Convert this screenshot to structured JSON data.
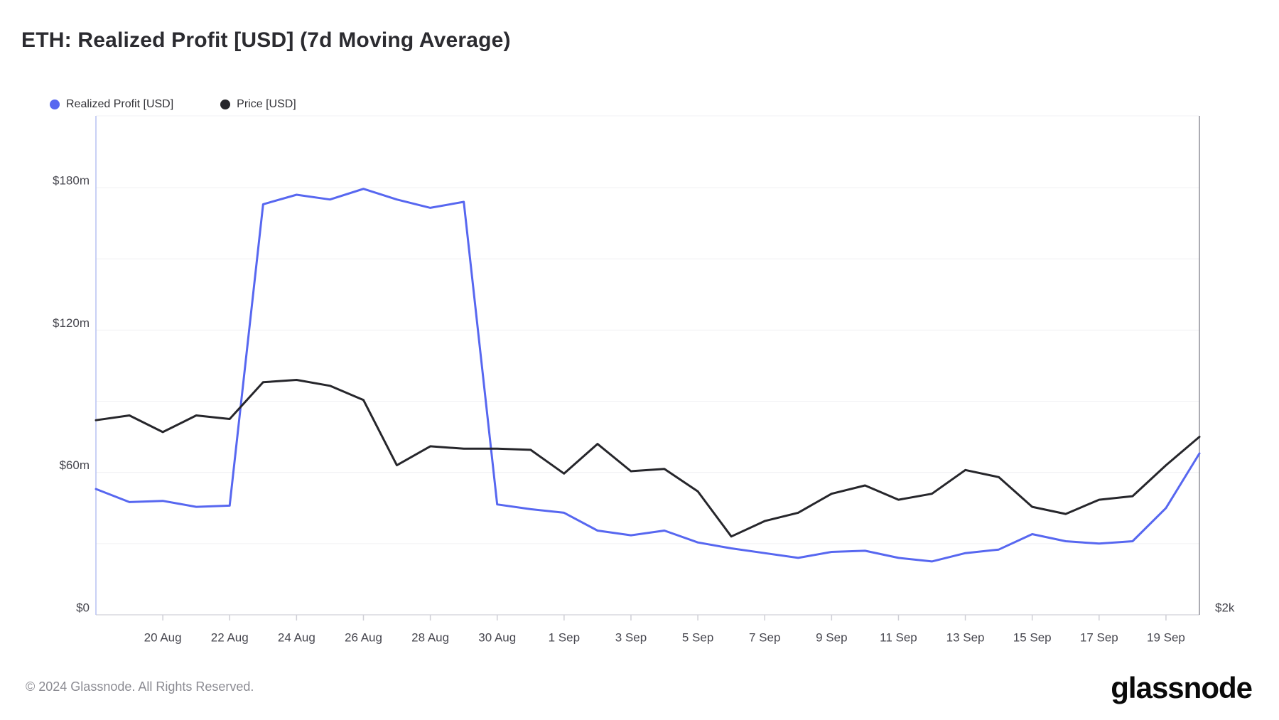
{
  "header": {
    "title": "ETH: Realized Profit [USD] (7d Moving Average)"
  },
  "legend": {
    "items": [
      {
        "label": "Realized Profit [USD]",
        "color": "#5767f0"
      },
      {
        "label": "Price [USD]",
        "color": "#26262b"
      }
    ]
  },
  "chart_data": {
    "type": "line",
    "title": "ETH: Realized Profit [USD] (7d Moving Average)",
    "grid": "horizontal",
    "legend_position": "top-left",
    "x": [
      "18 Aug",
      "19 Aug",
      "20 Aug",
      "21 Aug",
      "22 Aug",
      "23 Aug",
      "24 Aug",
      "25 Aug",
      "26 Aug",
      "27 Aug",
      "28 Aug",
      "29 Aug",
      "30 Aug",
      "31 Aug",
      "1 Sep",
      "2 Sep",
      "3 Sep",
      "4 Sep",
      "5 Sep",
      "6 Sep",
      "7 Sep",
      "8 Sep",
      "9 Sep",
      "10 Sep",
      "11 Sep",
      "12 Sep",
      "13 Sep",
      "14 Sep",
      "15 Sep",
      "16 Sep",
      "17 Sep",
      "18 Sep",
      "19 Sep",
      "20 Sep"
    ],
    "series": [
      {
        "name": "Realized Profit [USD]",
        "axis": "left",
        "unit": "USD millions",
        "color": "#5767f0",
        "values": [
          53,
          47.5,
          48,
          45.5,
          46,
          173,
          177,
          175,
          179.5,
          175,
          171.5,
          174,
          46.5,
          44.5,
          43,
          35.5,
          33.5,
          35.5,
          30.5,
          28,
          26,
          24,
          26.5,
          27,
          24,
          22.5,
          26,
          27.5,
          34,
          31,
          30,
          31,
          45,
          68
        ]
      },
      {
        "name": "Price [USD]",
        "axis": "right",
        "unit": "plotted in left-axis equivalent (right axis shows $2k at baseline)",
        "color": "#26262b",
        "values": [
          82,
          84,
          77,
          84,
          82.5,
          98,
          99,
          96.5,
          90.5,
          63,
          71,
          70,
          70,
          69.5,
          59.5,
          72,
          60.5,
          61.5,
          52,
          33,
          39.5,
          43,
          51,
          54.5,
          48.5,
          51,
          61,
          58,
          45.5,
          42.5,
          48.5,
          50,
          63,
          75
        ]
      }
    ],
    "ylim": [
      0,
      210
    ],
    "y_ticks": [
      {
        "label": "$180m",
        "value": 180
      },
      {
        "label": "$120m",
        "value": 120
      },
      {
        "label": "$60m",
        "value": 60
      },
      {
        "label": "$0",
        "value": 0
      }
    ],
    "y_minor_gridlines": [
      150,
      90,
      30
    ],
    "x_ticks": [
      {
        "label": "20 Aug",
        "index": 2
      },
      {
        "label": "22 Aug",
        "index": 4
      },
      {
        "label": "24 Aug",
        "index": 6
      },
      {
        "label": "26 Aug",
        "index": 8
      },
      {
        "label": "28 Aug",
        "index": 10
      },
      {
        "label": "30 Aug",
        "index": 12
      },
      {
        "label": "1 Sep",
        "index": 14
      },
      {
        "label": "3 Sep",
        "index": 16
      },
      {
        "label": "5 Sep",
        "index": 18
      },
      {
        "label": "7 Sep",
        "index": 20
      },
      {
        "label": "9 Sep",
        "index": 22
      },
      {
        "label": "11 Sep",
        "index": 24
      },
      {
        "label": "13 Sep",
        "index": 26
      },
      {
        "label": "15 Sep",
        "index": 28
      },
      {
        "label": "17 Sep",
        "index": 30
      },
      {
        "label": "19 Sep",
        "index": 32
      }
    ],
    "right_axis_label": "$2k",
    "colors": {
      "gridline": "#f0f0f3",
      "axis_bottom": "#d9d9df",
      "axis_left": "#b7c1f2",
      "axis_right": "#90909a",
      "axis_top": "#f2f2f5",
      "tick_label": "#47474f",
      "tick_mark": "#cfcfd6"
    }
  },
  "footer": {
    "copyright": "© 2024 Glassnode. All Rights Reserved.",
    "logo_text": "glassnode"
  }
}
